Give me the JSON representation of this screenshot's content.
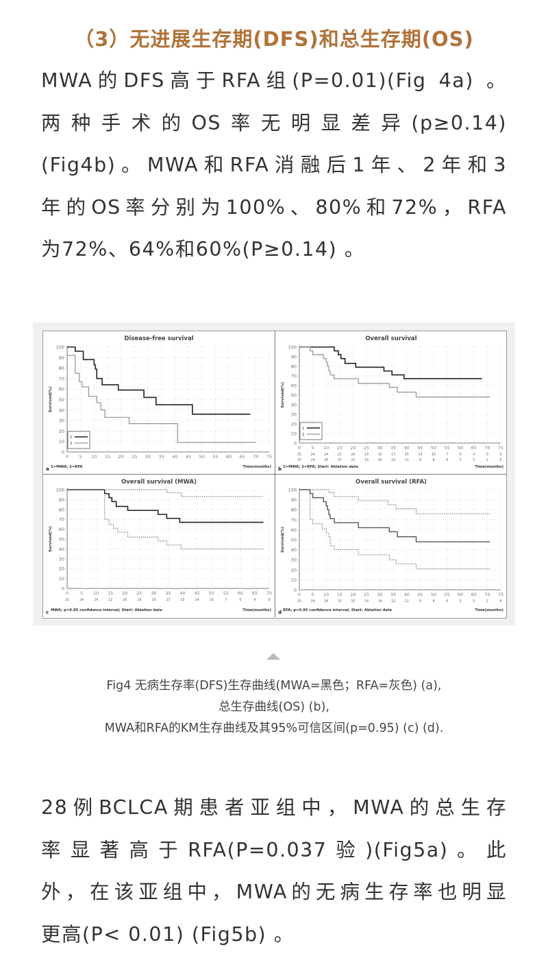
{
  "heading": "（3）无进展生存期(DFS)和总生存期(OS)",
  "paragraph1": [
    "MWA的DFS高于RFA组(P=0.01)(Fig 4a) 。",
    "两种手术的OS率无明显差异(p≥0.14)",
    "(Fig4b)。MWA和RFA消融后1年、2年和3",
    "年的OS率分别为100%、80%和72%，RFA",
    "为72%、64%和60%(P≥0.14) 。"
  ],
  "caption": [
    "Fig4 无病生存率(DFS)生存曲线(MWA=黑色；RFA=灰色) (a),",
    "总生存曲线(OS) (b),",
    "MWA和RFA的KM生存曲线及其95%可信区间(p=0.95) (c) (d)."
  ],
  "paragraph2": [
    "28例BCLCA期患者亚组中，MWA的总生存",
    "率显著高于RFA(P=0.037验)(Fig5a)。此",
    "外，在该亚组中，MWA的无病生存率也明显",
    "更高(P< 0.01) (Fig5b) 。"
  ],
  "colors": {
    "heading": "#b0733a",
    "mwa": "#222222",
    "rfa": "#999999",
    "ci": "#555555"
  },
  "chart_data": [
    {
      "type": "line",
      "panel_letter": "a",
      "title": "Disease-free survival",
      "ylabel": "Survived(%)",
      "xlabel": "Time(months)",
      "footnote": "1=MWA; 2=RFA",
      "xlim": [
        0,
        75
      ],
      "ylim": [
        0,
        100
      ],
      "xticks": [
        0,
        5,
        10,
        15,
        20,
        25,
        30,
        35,
        40,
        45,
        50,
        55,
        60,
        65,
        70,
        75
      ],
      "yticks": [
        0,
        10,
        20,
        30,
        40,
        50,
        60,
        70,
        80,
        90,
        100
      ],
      "grid": true,
      "legend": "bottom-left",
      "series": [
        {
          "name": "1",
          "style": "solid-black",
          "steps": [
            [
              0,
              100
            ],
            [
              3,
              96
            ],
            [
              6,
              88
            ],
            [
              10,
              83
            ],
            [
              10.5,
              79
            ],
            [
              11,
              70
            ],
            [
              13,
              64
            ],
            [
              19,
              59
            ],
            [
              28.5,
              52
            ],
            [
              33,
              45
            ],
            [
              46.5,
              36
            ],
            [
              68,
              36
            ]
          ]
        },
        {
          "name": "2",
          "style": "solid-gray",
          "steps": [
            [
              0,
              92
            ],
            [
              3,
              75
            ],
            [
              4.5,
              67
            ],
            [
              5.5,
              62
            ],
            [
              8,
              53
            ],
            [
              11,
              47
            ],
            [
              12.5,
              40
            ],
            [
              14,
              33
            ],
            [
              23,
              27
            ],
            [
              41,
              9
            ],
            [
              70,
              9
            ]
          ]
        }
      ]
    },
    {
      "type": "line",
      "panel_letter": "b",
      "title": "Overall survival",
      "ylabel": "Survived(%)",
      "xlabel": "Time(months)",
      "footnote": "1=MWA; 2=RFA; Start: Ablation date",
      "xlim": [
        0,
        75
      ],
      "ylim": [
        0,
        100
      ],
      "xticks": [
        0,
        5,
        10,
        15,
        20,
        25,
        30,
        35,
        40,
        45,
        50,
        55,
        60,
        65,
        70,
        75
      ],
      "yticks": [
        0,
        10,
        20,
        30,
        40,
        50,
        60,
        70,
        80,
        90,
        100
      ],
      "grid": true,
      "legend": "bottom-left",
      "at_risk": [
        [
          25,
          24,
          24,
          22,
          20,
          19,
          19,
          17,
          15,
          14,
          10,
          7,
          6,
          4,
          0,
          0
        ],
        [
          25,
          24,
          20,
          15,
          15,
          14,
          14,
          13,
          11,
          9,
          8,
          6,
          5,
          5,
          2,
          0
        ]
      ],
      "series": [
        {
          "name": "1",
          "style": "solid-black",
          "steps": [
            [
              0,
              100
            ],
            [
              13,
              96
            ],
            [
              14.5,
              92
            ],
            [
              15.5,
              88
            ],
            [
              17,
              83
            ],
            [
              21,
              79
            ],
            [
              31.5,
              75
            ],
            [
              34.5,
              71
            ],
            [
              39,
              67
            ],
            [
              68,
              67
            ]
          ]
        },
        {
          "name": "2",
          "style": "solid-gray",
          "steps": [
            [
              0,
              100
            ],
            [
              4,
              96
            ],
            [
              5,
              92
            ],
            [
              9,
              88
            ],
            [
              10,
              84
            ],
            [
              10.5,
              80
            ],
            [
              11,
              75
            ],
            [
              11.5,
              71
            ],
            [
              13,
              67
            ],
            [
              22,
              62
            ],
            [
              33.5,
              58
            ],
            [
              36.5,
              53
            ],
            [
              43.5,
              48
            ],
            [
              71,
              48
            ]
          ]
        }
      ]
    },
    {
      "type": "line",
      "panel_letter": "c",
      "title": "Overall survival (MWA)",
      "ylabel": "Survived(%)",
      "xlabel": "Time(months)",
      "footnote": "MWA; p=0.95 confidence interval; Start: Ablation date",
      "xlim": [
        0,
        70
      ],
      "ylim": [
        0,
        100
      ],
      "xticks": [
        0,
        5,
        10,
        15,
        20,
        25,
        30,
        35,
        40,
        45,
        50,
        55,
        60,
        65,
        70
      ],
      "yticks": [
        0,
        10,
        20,
        30,
        40,
        50,
        60,
        70,
        80,
        90,
        100
      ],
      "grid": true,
      "at_risk": [
        [
          25,
          24,
          24,
          22,
          20,
          19,
          19,
          17,
          15,
          14,
          10,
          7,
          6,
          4,
          0
        ]
      ],
      "series": [
        {
          "style": "solid-black",
          "steps": [
            [
              0,
              100
            ],
            [
              13,
              96
            ],
            [
              14.5,
              92
            ],
            [
              15.5,
              88
            ],
            [
              17,
              83
            ],
            [
              21,
              79
            ],
            [
              31.5,
              75
            ],
            [
              34.5,
              71
            ],
            [
              39,
              67
            ],
            [
              68,
              67
            ]
          ]
        },
        {
          "style": "dotted",
          "steps": [
            [
              0,
              100
            ],
            [
              34.5,
              97
            ],
            [
              39.5,
              93
            ],
            [
              68,
              93
            ]
          ]
        },
        {
          "style": "dotted",
          "steps": [
            [
              0,
              100
            ],
            [
              13,
              70
            ],
            [
              14.5,
              65
            ],
            [
              16,
              61
            ],
            [
              17.5,
              57
            ],
            [
              21,
              52
            ],
            [
              31.5,
              48
            ],
            [
              34.5,
              44
            ],
            [
              39.5,
              40
            ],
            [
              68,
              40
            ]
          ]
        }
      ]
    },
    {
      "type": "line",
      "panel_letter": "d",
      "title": "Overall survival (RFA)",
      "ylabel": "Survived(%)",
      "xlabel": "Time(months)",
      "footnote": "RFA; p=0.95 confidence interval; Start: Ablation date",
      "xlim": [
        0,
        75
      ],
      "ylim": [
        0,
        100
      ],
      "xticks": [
        0,
        5,
        10,
        15,
        20,
        25,
        30,
        35,
        40,
        45,
        50,
        55,
        60,
        65,
        70,
        75
      ],
      "yticks": [
        0,
        10,
        20,
        30,
        40,
        50,
        60,
        70,
        80,
        90,
        100
      ],
      "grid": true,
      "at_risk": [
        [
          25,
          24,
          20,
          15,
          15,
          14,
          14,
          13,
          11,
          9,
          8,
          6,
          5,
          5,
          2,
          0
        ]
      ],
      "series": [
        {
          "style": "solid-darkgray",
          "steps": [
            [
              0,
              100
            ],
            [
              4,
              96
            ],
            [
              5,
              92
            ],
            [
              9,
              88
            ],
            [
              10,
              84
            ],
            [
              10.5,
              80
            ],
            [
              11,
              75
            ],
            [
              11.5,
              71
            ],
            [
              13,
              67
            ],
            [
              22,
              62
            ],
            [
              33.5,
              58
            ],
            [
              36.5,
              53
            ],
            [
              43.5,
              48
            ],
            [
              71,
              48
            ]
          ]
        },
        {
          "style": "dotted",
          "steps": [
            [
              0,
              100
            ],
            [
              11,
              97
            ],
            [
              13,
              93
            ],
            [
              22,
              89
            ],
            [
              33,
              85
            ],
            [
              36,
              81
            ],
            [
              43.5,
              76
            ],
            [
              71,
              76
            ]
          ]
        },
        {
          "style": "dotted",
          "steps": [
            [
              0,
              100
            ],
            [
              4,
              70
            ],
            [
              5,
              66
            ],
            [
              8.5,
              61
            ],
            [
              10,
              57
            ],
            [
              11,
              53
            ],
            [
              11.5,
              44
            ],
            [
              13,
              40
            ],
            [
              22,
              35
            ],
            [
              33.5,
              30
            ],
            [
              36,
              26
            ],
            [
              43.5,
              21
            ],
            [
              71,
              21
            ]
          ]
        }
      ]
    }
  ]
}
